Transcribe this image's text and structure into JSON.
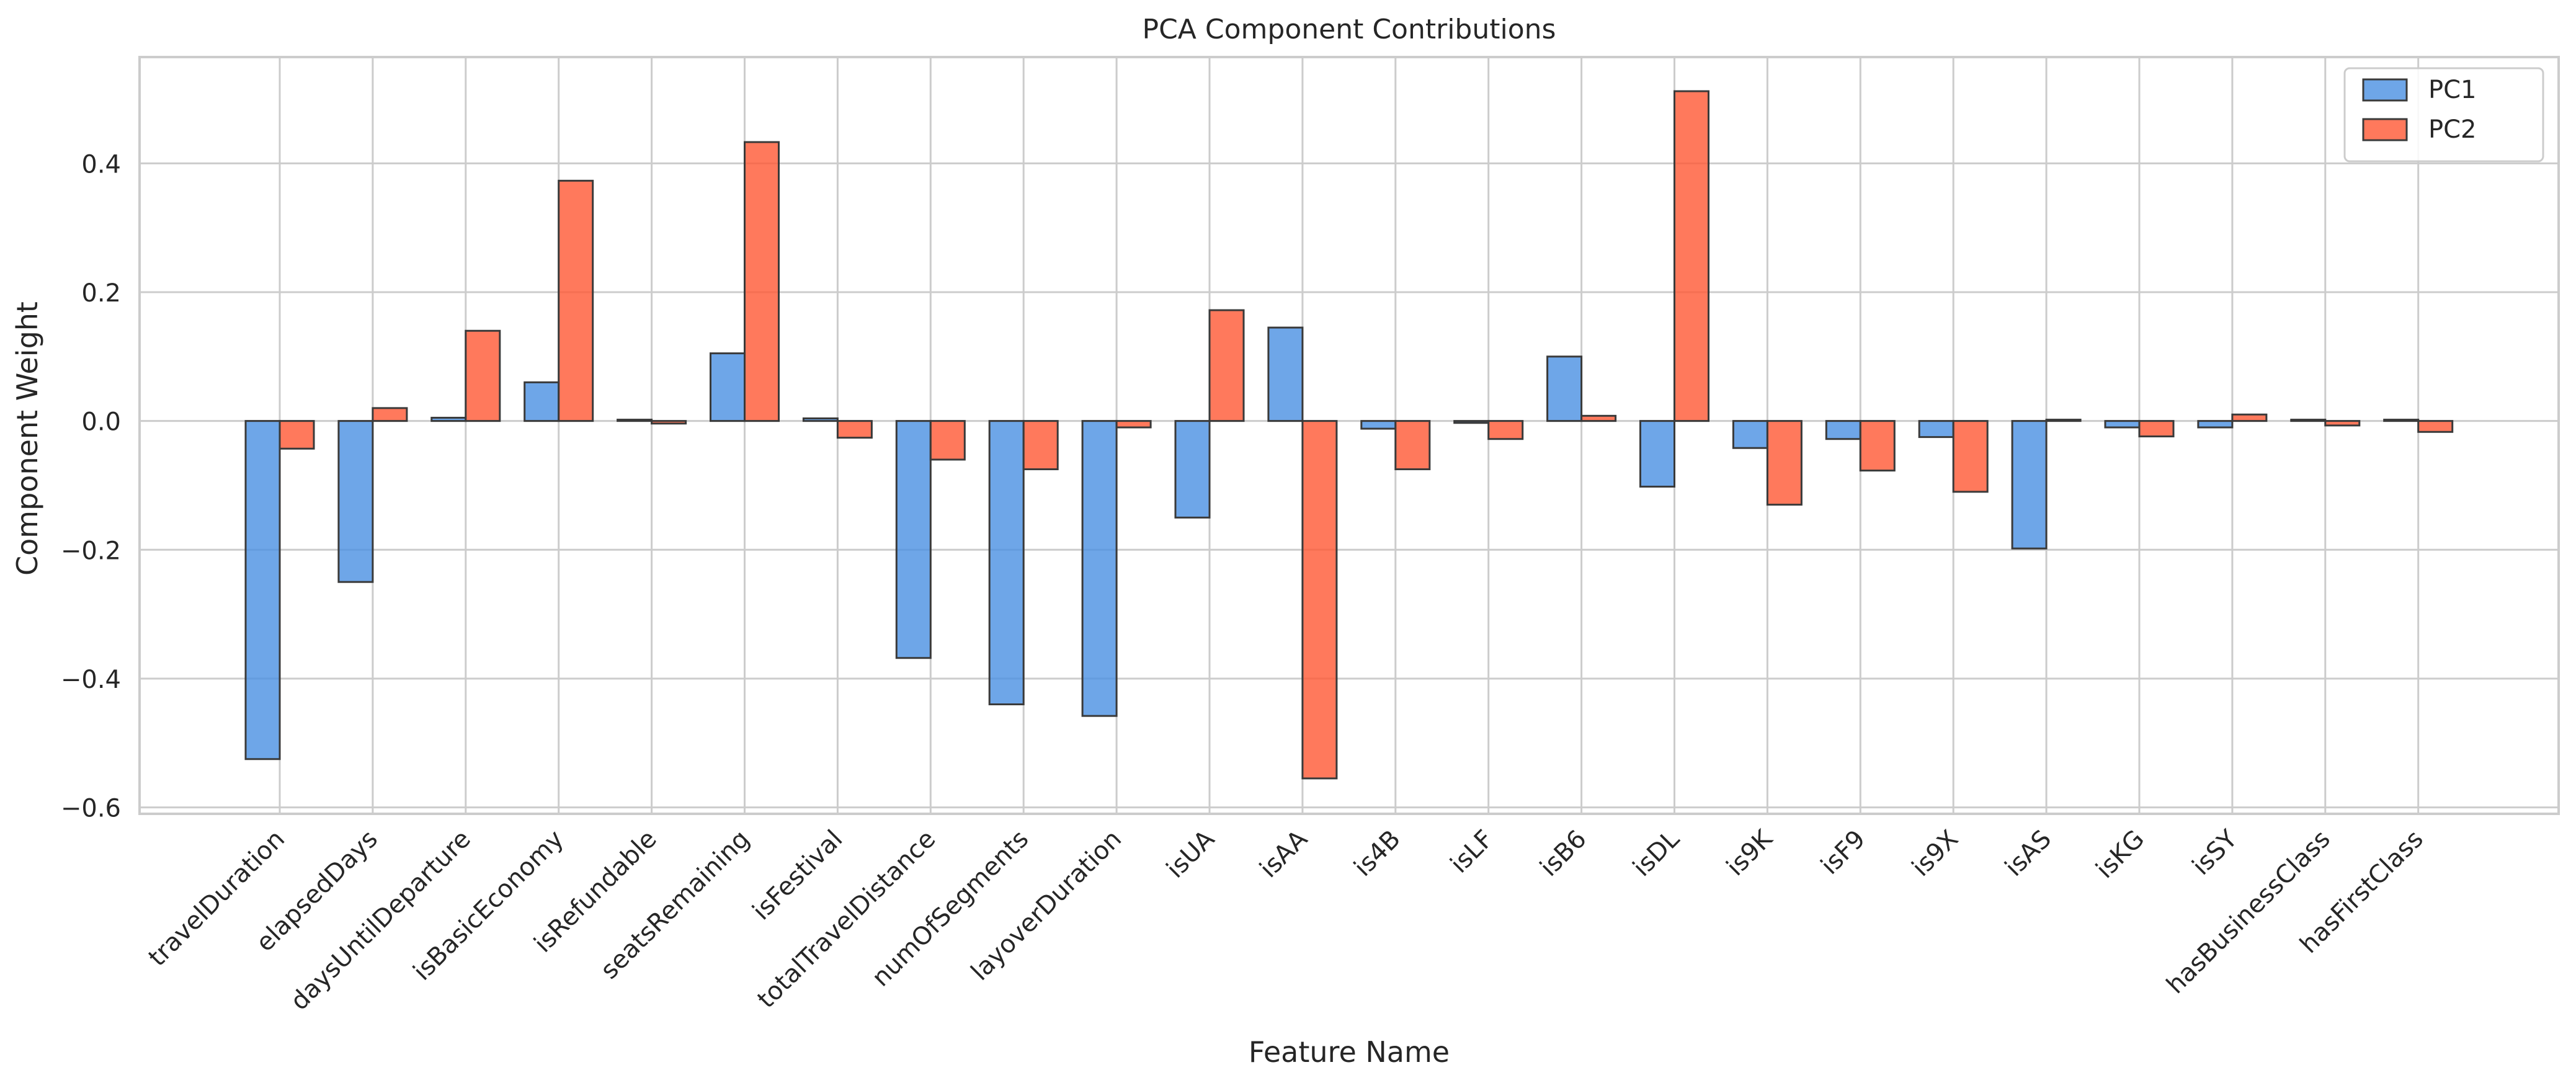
{
  "chart_data": {
    "type": "bar",
    "title": "PCA Component Contributions",
    "xlabel": "Feature Name",
    "ylabel": "Component Weight",
    "ylim": [
      -0.61,
      0.565
    ],
    "yticks": [
      {
        "value": -0.6,
        "label": "−0.6"
      },
      {
        "value": -0.4,
        "label": "−0.4"
      },
      {
        "value": -0.2,
        "label": "−0.2"
      },
      {
        "value": 0.0,
        "label": "0.0"
      },
      {
        "value": 0.2,
        "label": "0.2"
      },
      {
        "value": 0.4,
        "label": "0.4"
      }
    ],
    "grid": true,
    "legend_position": "top-right",
    "categories": [
      "travelDuration",
      "elapsedDays",
      "daysUntilDeparture",
      "isBasicEconomy",
      "isRefundable",
      "seatsRemaining",
      "isFestival",
      "totalTravelDistance",
      "numOfSegments",
      "layoverDuration",
      "isUA",
      "isAA",
      "is4B",
      "isLF",
      "isB6",
      "isDL",
      "is9K",
      "isF9",
      "is9X",
      "isAS",
      "isKG",
      "isSY",
      "hasBusinessClass",
      "hasFirstClass"
    ],
    "series": [
      {
        "name": "PC1",
        "color": "#4a90e2",
        "values": [
          -0.525,
          -0.25,
          0.005,
          0.06,
          0.002,
          0.105,
          0.004,
          -0.368,
          -0.44,
          -0.458,
          -0.15,
          0.145,
          -0.012,
          -0.003,
          0.1,
          -0.102,
          -0.042,
          -0.028,
          -0.025,
          -0.198,
          -0.01,
          -0.01,
          0.002,
          0.002
        ]
      },
      {
        "name": "PC2",
        "color": "#ff5733",
        "values": [
          -0.043,
          0.02,
          0.14,
          0.373,
          -0.004,
          0.433,
          -0.026,
          -0.06,
          -0.075,
          -0.01,
          0.172,
          -0.555,
          -0.075,
          -0.028,
          0.008,
          0.512,
          -0.13,
          -0.077,
          -0.11,
          0.002,
          -0.024,
          0.01,
          -0.007,
          -0.017
        ]
      }
    ]
  }
}
